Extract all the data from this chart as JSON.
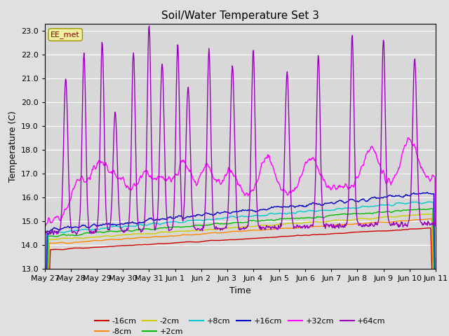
{
  "title": "Soil/Water Temperature Set 3",
  "xlabel": "Time",
  "ylabel": "Temperature (C)",
  "ylim": [
    13.0,
    23.3
  ],
  "yticks": [
    13.0,
    14.0,
    15.0,
    16.0,
    17.0,
    18.0,
    19.0,
    20.0,
    21.0,
    22.0,
    23.0
  ],
  "xtick_labels": [
    "May 27",
    "May 28",
    "May 29",
    "May 30",
    "May 31",
    "Jun 1",
    "Jun 2",
    "Jun 3",
    "Jun 4",
    "Jun 5",
    "Jun 6",
    "Jun 7",
    "Jun 8",
    "Jun 9",
    "Jun 10",
    "Jun 11"
  ],
  "watermark": "EE_met",
  "fig_bg": "#e0e0e0",
  "plot_bg": "#d8d8d8",
  "series_colors": {
    "-16cm": "#cc0000",
    "-8cm": "#ff8800",
    "-2cm": "#cccc00",
    "+2cm": "#00bb00",
    "+8cm": "#00cccc",
    "+16cm": "#0000cc",
    "+32cm": "#ff00ff",
    "+64cm": "#9900bb"
  }
}
